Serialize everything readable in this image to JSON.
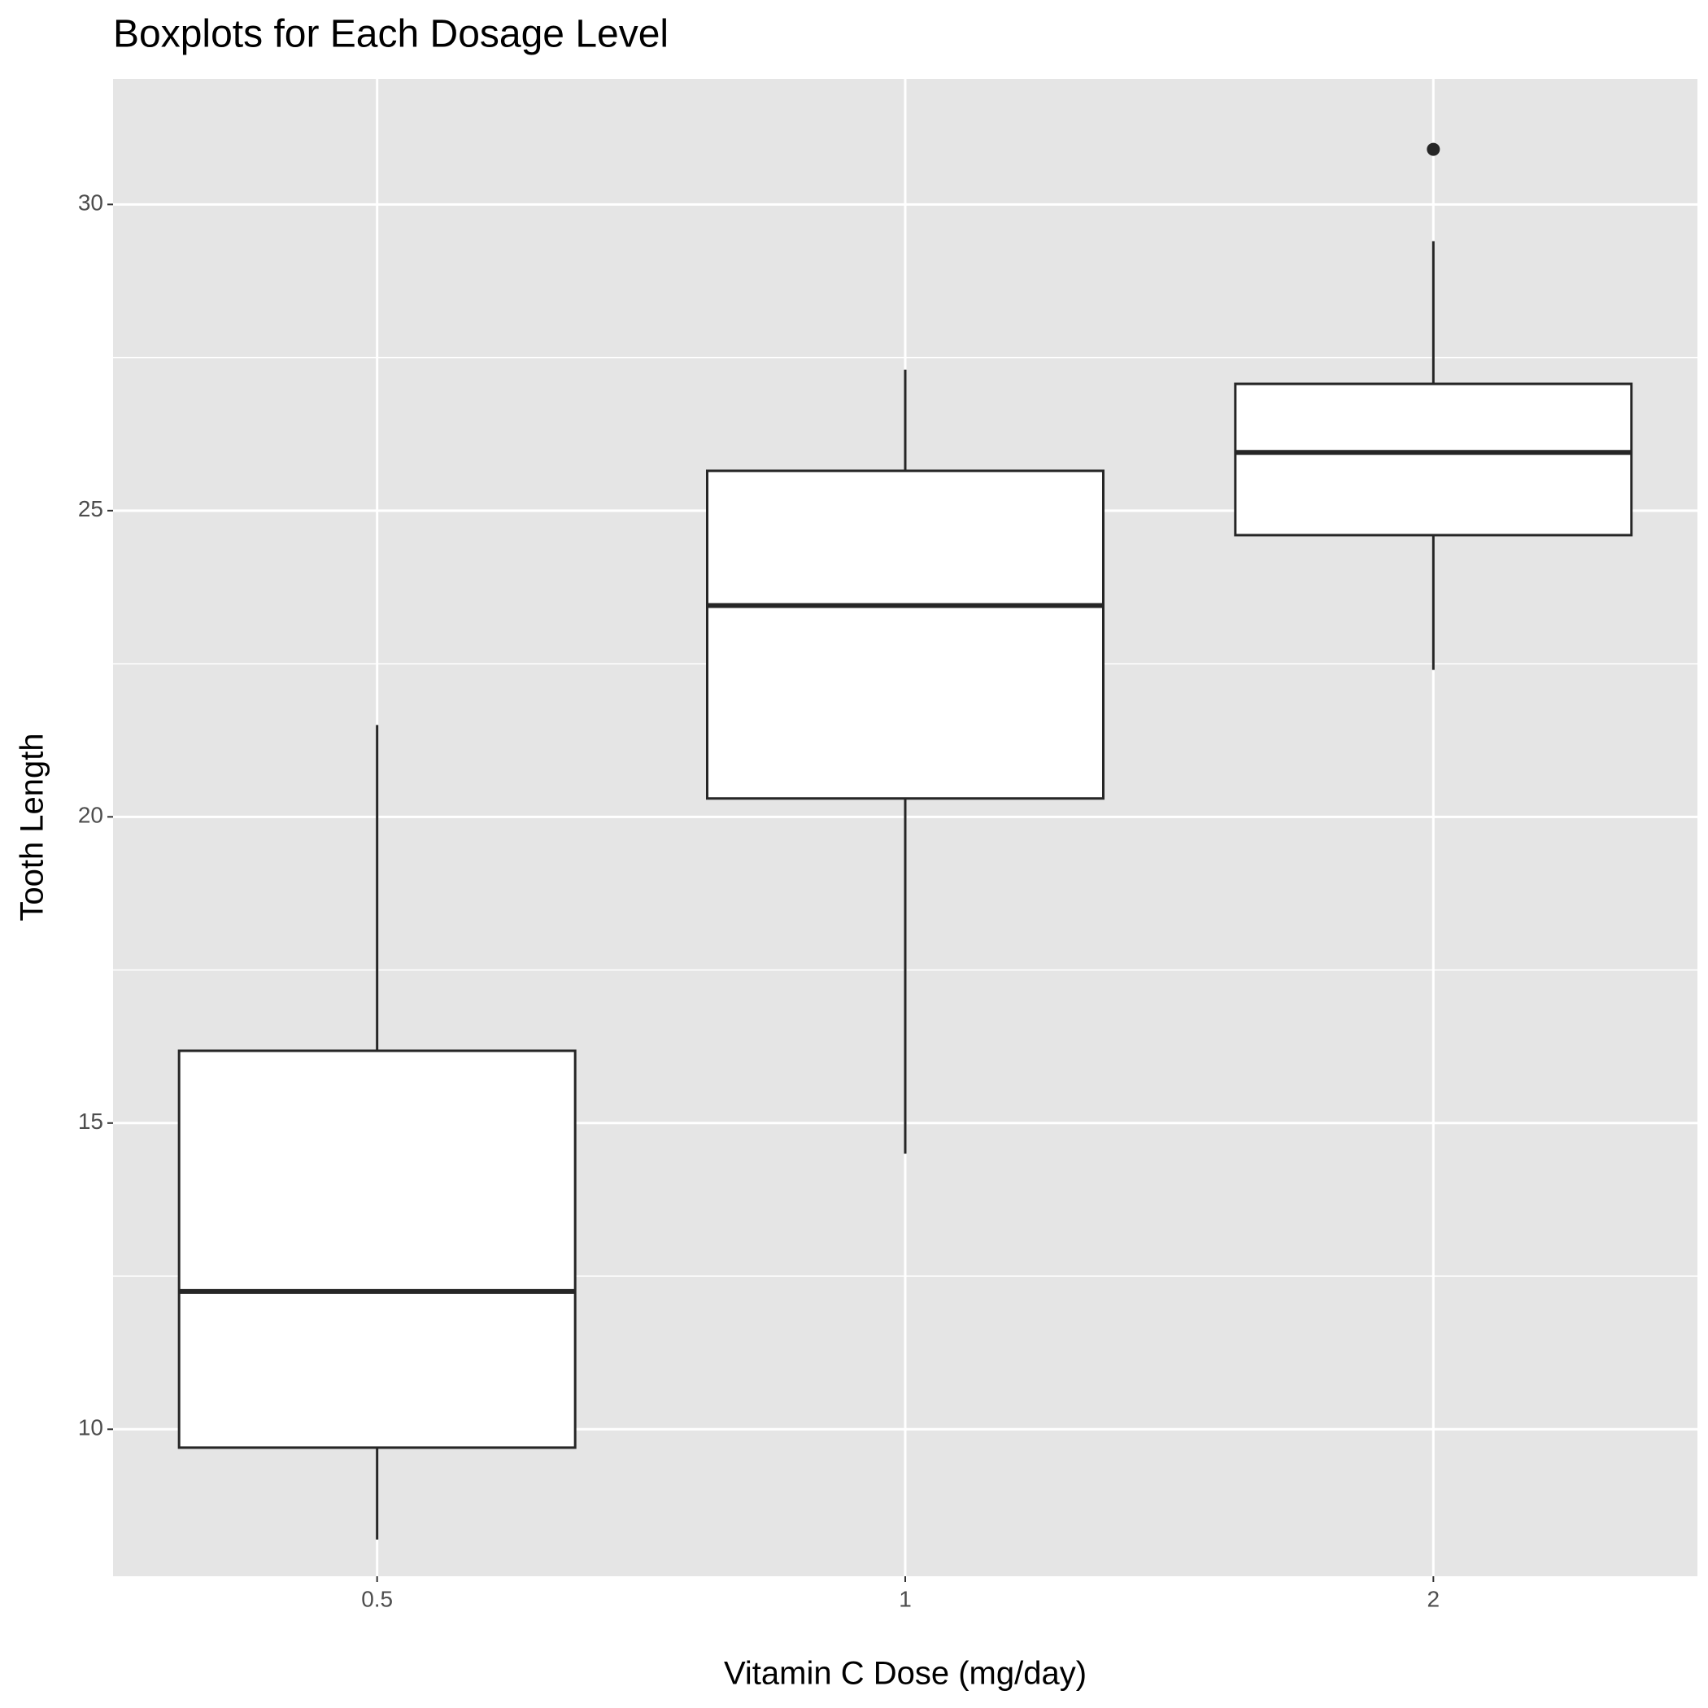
{
  "chart_data": {
    "type": "boxplot",
    "title": "Boxplots for Each Dosage Level",
    "x_label": "Vitamin C Dose (mg/day)",
    "y_label": "Tooth Length",
    "categories": [
      "0.5",
      "1",
      "2"
    ],
    "boxes": [
      {
        "whislo": 8.2,
        "q1": 9.7,
        "med": 12.25,
        "q3": 16.18,
        "whishi": 21.5,
        "outliers": []
      },
      {
        "whislo": 14.5,
        "q1": 20.3,
        "med": 23.45,
        "q3": 25.65,
        "whishi": 27.3,
        "outliers": []
      },
      {
        "whislo": 22.4,
        "q1": 24.6,
        "med": 25.95,
        "q3": 27.07,
        "whishi": 29.4,
        "outliers": [
          30.9
        ]
      }
    ],
    "ylim": [
      7.6,
      32.05
    ],
    "yticks": [
      10,
      15,
      20,
      25,
      30
    ],
    "y_minor_ticks": [
      7.5,
      12.5,
      17.5,
      22.5,
      27.5
    ],
    "grid": true,
    "panel_color": "#e5e5e5",
    "box_fill": "#ffffff",
    "line_color": "#262626"
  }
}
